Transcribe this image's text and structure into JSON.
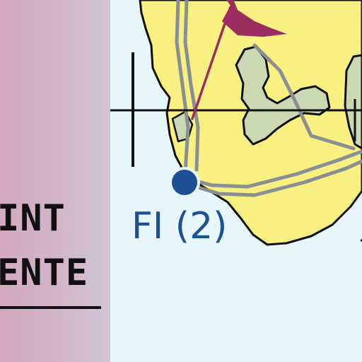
{
  "panel": {
    "line1": "INT",
    "line2": "ENTE"
  },
  "map": {
    "marker_label": "FI (2)",
    "colors": {
      "sea": "#e6f6fb",
      "land": "#f8f080",
      "island": "#cbd8b4",
      "coast": "#111111",
      "road": "#8a8f94",
      "flag": "#9b2d60",
      "marker": "#1f4f94",
      "panel": "#d3aac0"
    },
    "icons": {
      "flag": "pennant-flag-icon",
      "point": "location-dot-icon"
    }
  }
}
